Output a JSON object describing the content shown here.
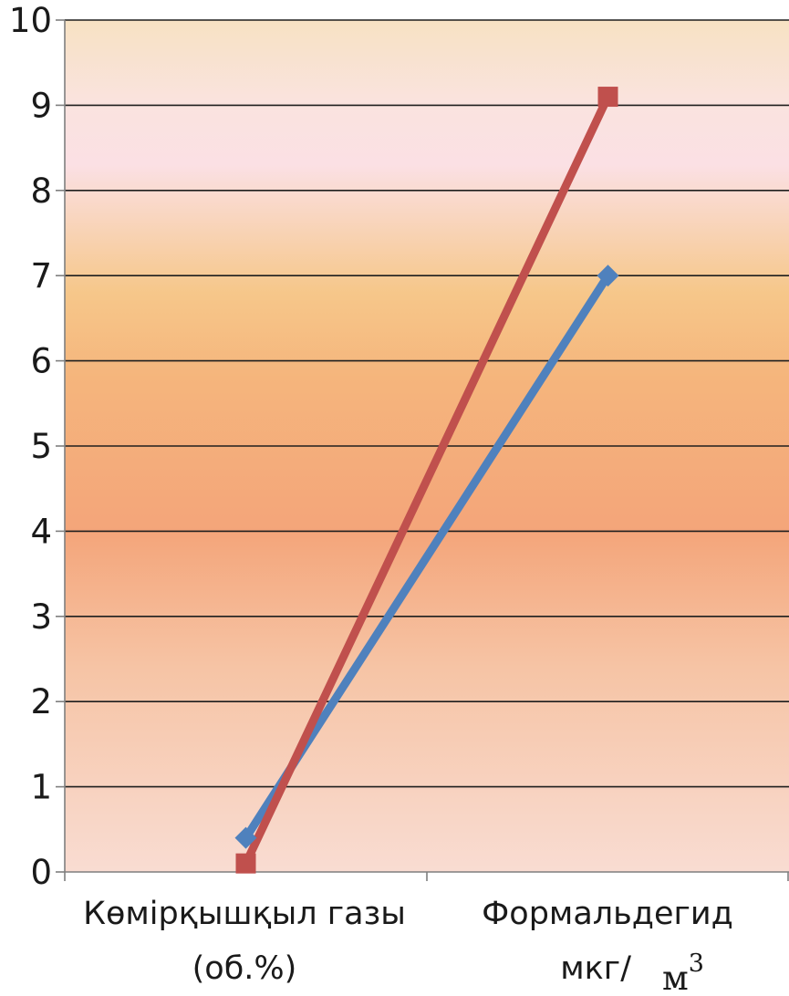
{
  "chart_data": {
    "type": "line",
    "categories": [
      [
        "Көмірқышқыл газы",
        "(об.%)"
      ],
      [
        "Формальдегид",
        "мкг/"
      ]
    ],
    "unit_suffix": "м",
    "unit_superscript": "3",
    "y_ticks": [
      "0",
      "1",
      "2",
      "3",
      "4",
      "5",
      "6",
      "7",
      "8",
      "9",
      "10"
    ],
    "ylim": [
      0,
      10
    ],
    "grid": true,
    "series": [
      {
        "values": [
          0.4,
          7.0
        ],
        "color": "#4f81bd",
        "marker": "diamond"
      },
      {
        "values": [
          0.1,
          9.1
        ],
        "color": "#c0504d",
        "marker": "square"
      }
    ]
  }
}
